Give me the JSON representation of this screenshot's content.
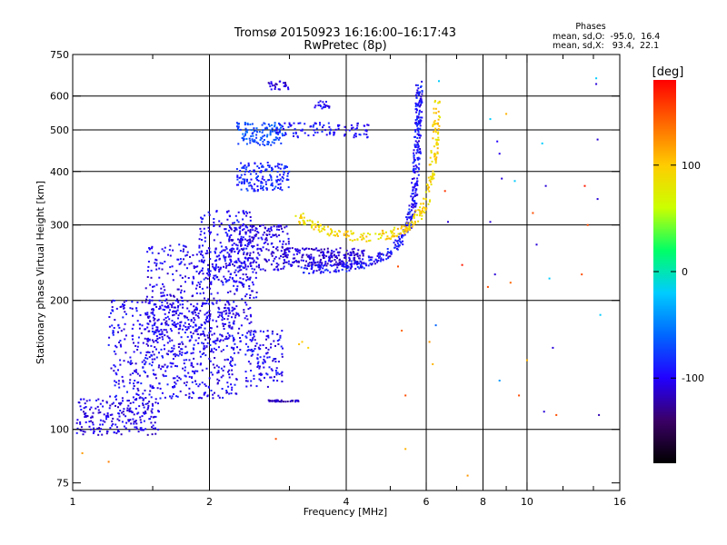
{
  "header": {
    "title_line1": "Tromsø 20150923 16:16:00–16:17:43",
    "title_line2": "RwPretec (8p)",
    "phase_title": "Phases",
    "phase_stats_o": "mean, sd,O:  -95.0,  16.4",
    "phase_stats_x": "mean, sd,X:   93.4,  22.1"
  },
  "colorbar": {
    "unit_label": "[deg]",
    "ticks": [
      {
        "value": 100,
        "label": "100"
      },
      {
        "value": 0,
        "label": "0"
      },
      {
        "value": -100,
        "label": "-100"
      }
    ],
    "range": [
      -180,
      180
    ],
    "colors": [
      "#000000",
      "#3b0066",
      "#2200ff",
      "#0066ff",
      "#00ccff",
      "#00ff66",
      "#ccff00",
      "#ffcc00",
      "#ff6600",
      "#ff0000"
    ]
  },
  "chart_data": {
    "type": "scatter",
    "xlabel": "Frequency [MHz]",
    "ylabel": "Stationary phase Virtual Height [km]",
    "xscale": "log",
    "yscale": "log",
    "xlim": [
      1,
      16
    ],
    "ylim": [
      72,
      750
    ],
    "x_ticks": [
      {
        "value": 1,
        "label": "1"
      },
      {
        "value": 2,
        "label": "2"
      },
      {
        "value": 4,
        "label": "4"
      },
      {
        "value": 6,
        "label": "6"
      },
      {
        "value": 8,
        "label": "8"
      },
      {
        "value": 10,
        "label": "10"
      },
      {
        "value": 16,
        "label": "16"
      }
    ],
    "x_gridlines": [
      2,
      4,
      6,
      8,
      10
    ],
    "x_minor_ticks": [
      1.5,
      3,
      5,
      7,
      9,
      12,
      14
    ],
    "y_ticks": [
      {
        "value": 75,
        "label": "75"
      },
      {
        "value": 100,
        "label": "100"
      },
      {
        "value": 200,
        "label": "200"
      },
      {
        "value": 300,
        "label": "300"
      },
      {
        "value": 400,
        "label": "400"
      },
      {
        "value": 500,
        "label": "500"
      },
      {
        "value": 600,
        "label": "600"
      },
      {
        "value": 750,
        "label": "750"
      }
    ],
    "y_gridlines": [
      100,
      200,
      300,
      400,
      500,
      600
    ],
    "grid": true,
    "point_clouds": [
      {
        "x_range": [
          1.02,
          1.55
        ],
        "y_range": [
          97,
          118
        ],
        "n": 220,
        "phase": -105
      },
      {
        "x_range": [
          1.2,
          2.3
        ],
        "y_range": [
          118,
          200
        ],
        "n": 600,
        "phase": -100
      },
      {
        "x_range": [
          1.45,
          2.55
        ],
        "y_range": [
          150,
          270
        ],
        "n": 500,
        "phase": -102
      },
      {
        "x_range": [
          1.9,
          2.5
        ],
        "y_range": [
          220,
          325
        ],
        "n": 180,
        "phase": -98
      },
      {
        "x_range": [
          2.4,
          2.9
        ],
        "y_range": [
          125,
          170
        ],
        "n": 120,
        "phase": -100
      },
      {
        "x_range": [
          2.7,
          3.15
        ],
        "y_range": [
          116,
          117
        ],
        "n": 40,
        "phase": -115
      },
      {
        "x_range": [
          2.2,
          3.0
        ],
        "y_range": [
          235,
          300
        ],
        "n": 220,
        "phase": -105
      },
      {
        "x_range": [
          2.9,
          4.4
        ],
        "y_range": [
          240,
          265
        ],
        "n": 220,
        "phase": -110
      },
      {
        "x_range": [
          2.3,
          3.0
        ],
        "y_range": [
          360,
          420
        ],
        "n": 160,
        "phase": -85
      },
      {
        "x_range": [
          2.3,
          2.9
        ],
        "y_range": [
          460,
          520
        ],
        "n": 120,
        "phase": -70
      },
      {
        "x_range": [
          2.8,
          4.5
        ],
        "y_range": [
          480,
          520
        ],
        "n": 100,
        "phase": -95
      },
      {
        "x_range": [
          2.7,
          3.0
        ],
        "y_range": [
          620,
          650
        ],
        "n": 25,
        "phase": -110
      },
      {
        "x_range": [
          3.4,
          3.7
        ],
        "y_range": [
          560,
          585
        ],
        "n": 20,
        "phase": -100
      }
    ],
    "traces": [
      {
        "name": "O-trace",
        "phase": -95,
        "n": 420,
        "x": [
          3.2,
          3.8,
          4.4,
          5.0,
          5.4,
          5.6,
          5.7,
          5.75,
          5.78,
          5.8
        ],
        "y": [
          236,
          238,
          244,
          258,
          285,
          330,
          400,
          480,
          560,
          640
        ]
      },
      {
        "name": "X-trace",
        "phase": 93,
        "n": 280,
        "x": [
          3.1,
          3.6,
          4.3,
          5.0,
          5.6,
          6.0,
          6.2,
          6.3,
          6.35
        ],
        "y": [
          315,
          290,
          280,
          285,
          300,
          340,
          400,
          480,
          580
        ]
      }
    ],
    "sparse_points": [
      {
        "x": 1.05,
        "y": 88,
        "phase": 120
      },
      {
        "x": 1.2,
        "y": 84,
        "phase": 130
      },
      {
        "x": 2.8,
        "y": 95,
        "phase": 150
      },
      {
        "x": 3.2,
        "y": 160,
        "phase": 100
      },
      {
        "x": 3.3,
        "y": 155,
        "phase": 95
      },
      {
        "x": 3.15,
        "y": 158,
        "phase": 105
      },
      {
        "x": 5.4,
        "y": 90,
        "phase": 110
      },
      {
        "x": 5.3,
        "y": 170,
        "phase": 140
      },
      {
        "x": 5.4,
        "y": 120,
        "phase": 150
      },
      {
        "x": 5.2,
        "y": 240,
        "phase": 150
      },
      {
        "x": 6.1,
        "y": 160,
        "phase": 120
      },
      {
        "x": 6.2,
        "y": 142,
        "phase": 110
      },
      {
        "x": 6.3,
        "y": 175,
        "phase": -60
      },
      {
        "x": 6.4,
        "y": 650,
        "phase": -20
      },
      {
        "x": 6.6,
        "y": 360,
        "phase": 160
      },
      {
        "x": 6.7,
        "y": 305,
        "phase": -110
      },
      {
        "x": 7.2,
        "y": 242,
        "phase": 170
      },
      {
        "x": 7.4,
        "y": 78,
        "phase": 120
      },
      {
        "x": 8.3,
        "y": 530,
        "phase": -20
      },
      {
        "x": 8.3,
        "y": 305,
        "phase": -110
      },
      {
        "x": 8.2,
        "y": 215,
        "phase": 150
      },
      {
        "x": 8.5,
        "y": 230,
        "phase": -110
      },
      {
        "x": 8.6,
        "y": 470,
        "phase": -100
      },
      {
        "x": 8.7,
        "y": 440,
        "phase": -105
      },
      {
        "x": 8.7,
        "y": 130,
        "phase": -40
      },
      {
        "x": 8.8,
        "y": 385,
        "phase": -110
      },
      {
        "x": 9.0,
        "y": 545,
        "phase": 110
      },
      {
        "x": 9.2,
        "y": 220,
        "phase": 140
      },
      {
        "x": 9.4,
        "y": 380,
        "phase": -20
      },
      {
        "x": 9.6,
        "y": 120,
        "phase": 150
      },
      {
        "x": 10.0,
        "y": 145,
        "phase": 110
      },
      {
        "x": 10.3,
        "y": 320,
        "phase": 150
      },
      {
        "x": 10.5,
        "y": 270,
        "phase": -110
      },
      {
        "x": 10.8,
        "y": 465,
        "phase": -20
      },
      {
        "x": 10.9,
        "y": 110,
        "phase": -110
      },
      {
        "x": 11.0,
        "y": 370,
        "phase": -110
      },
      {
        "x": 11.2,
        "y": 225,
        "phase": -20
      },
      {
        "x": 11.4,
        "y": 155,
        "phase": -110
      },
      {
        "x": 11.6,
        "y": 108,
        "phase": 150
      },
      {
        "x": 13.4,
        "y": 370,
        "phase": 170
      },
      {
        "x": 13.2,
        "y": 230,
        "phase": 150
      },
      {
        "x": 13.6,
        "y": 300,
        "phase": 150
      },
      {
        "x": 14.2,
        "y": 660,
        "phase": -20
      },
      {
        "x": 14.2,
        "y": 640,
        "phase": -110
      },
      {
        "x": 14.3,
        "y": 475,
        "phase": -110
      },
      {
        "x": 14.3,
        "y": 345,
        "phase": -110
      },
      {
        "x": 14.5,
        "y": 185,
        "phase": -20
      },
      {
        "x": 14.4,
        "y": 108,
        "phase": -120
      }
    ]
  }
}
